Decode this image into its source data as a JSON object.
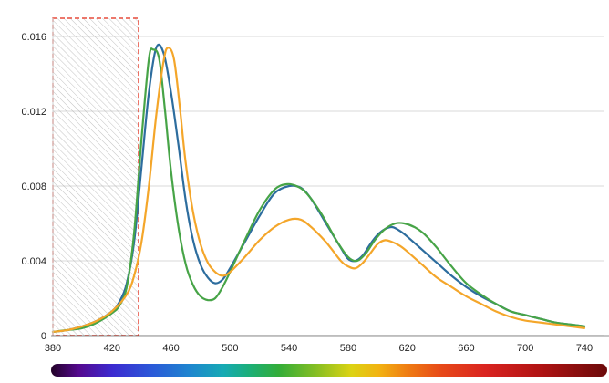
{
  "chart_data": {
    "type": "line",
    "title": "",
    "xlabel": "",
    "ylabel": "",
    "xlim": [
      380,
      740
    ],
    "ylim": [
      0,
      0.016
    ],
    "grid": "horizontal",
    "legend": "none",
    "x_ticks": [
      {
        "value": 380,
        "label": "380"
      },
      {
        "value": 420,
        "label": "420"
      },
      {
        "value": 460,
        "label": "460"
      },
      {
        "value": 500,
        "label": "500"
      },
      {
        "value": 540,
        "label": "540"
      },
      {
        "value": 580,
        "label": "580"
      },
      {
        "value": 620,
        "label": "620"
      },
      {
        "value": 660,
        "label": "660"
      },
      {
        "value": 700,
        "label": "700"
      },
      {
        "value": 740,
        "label": "740"
      }
    ],
    "y_ticks": [
      {
        "value": 0,
        "label": "0"
      },
      {
        "value": 0.004,
        "label": "0.004"
      },
      {
        "value": 0.008,
        "label": "0.008"
      },
      {
        "value": 0.012,
        "label": "0.012"
      },
      {
        "value": 0.016,
        "label": "0.016"
      }
    ],
    "excluded_region": {
      "x_start": 380,
      "x_end": 438,
      "style": "diagonal-hatch",
      "hatch_color": "#9a9a9a",
      "border_color": "#e74c3c",
      "border_style": "dashed"
    },
    "series": [
      {
        "name": "series-blue",
        "color": "#2d6d9e",
        "points": [
          [
            380,
            0.0002
          ],
          [
            390,
            0.0003
          ],
          [
            400,
            0.0005
          ],
          [
            410,
            0.0008
          ],
          [
            420,
            0.0013
          ],
          [
            425,
            0.0018
          ],
          [
            430,
            0.0028
          ],
          [
            435,
            0.005
          ],
          [
            440,
            0.009
          ],
          [
            445,
            0.013
          ],
          [
            450,
            0.0154
          ],
          [
            455,
            0.0151
          ],
          [
            460,
            0.013
          ],
          [
            465,
            0.0102
          ],
          [
            470,
            0.0072
          ],
          [
            475,
            0.0051
          ],
          [
            480,
            0.0038
          ],
          [
            485,
            0.0031
          ],
          [
            490,
            0.0028
          ],
          [
            495,
            0.003
          ],
          [
            500,
            0.0036
          ],
          [
            510,
            0.005
          ],
          [
            520,
            0.0064
          ],
          [
            530,
            0.0076
          ],
          [
            540,
            0.008
          ],
          [
            548,
            0.0079
          ],
          [
            555,
            0.0073
          ],
          [
            565,
            0.006
          ],
          [
            575,
            0.0047
          ],
          [
            580,
            0.0041
          ],
          [
            585,
            0.004
          ],
          [
            590,
            0.0043
          ],
          [
            595,
            0.0049
          ],
          [
            600,
            0.0054
          ],
          [
            605,
            0.0057
          ],
          [
            610,
            0.0058
          ],
          [
            615,
            0.0056
          ],
          [
            620,
            0.0053
          ],
          [
            630,
            0.0046
          ],
          [
            640,
            0.0039
          ],
          [
            650,
            0.0032
          ],
          [
            660,
            0.0026
          ],
          [
            670,
            0.0021
          ],
          [
            680,
            0.0017
          ],
          [
            690,
            0.0013
          ],
          [
            700,
            0.0011
          ],
          [
            710,
            0.0009
          ],
          [
            720,
            0.0007
          ],
          [
            730,
            0.0006
          ],
          [
            740,
            0.0005
          ]
        ]
      },
      {
        "name": "series-green",
        "color": "#47a447",
        "points": [
          [
            380,
            0.0002
          ],
          [
            390,
            0.0003
          ],
          [
            400,
            0.0004
          ],
          [
            410,
            0.0007
          ],
          [
            420,
            0.0012
          ],
          [
            425,
            0.0016
          ],
          [
            430,
            0.0026
          ],
          [
            435,
            0.0055
          ],
          [
            440,
            0.0105
          ],
          [
            445,
            0.0148
          ],
          [
            448,
            0.0153
          ],
          [
            452,
            0.0148
          ],
          [
            456,
            0.012
          ],
          [
            460,
            0.0088
          ],
          [
            465,
            0.0058
          ],
          [
            470,
            0.0038
          ],
          [
            475,
            0.0027
          ],
          [
            480,
            0.0021
          ],
          [
            485,
            0.0019
          ],
          [
            490,
            0.002
          ],
          [
            495,
            0.0026
          ],
          [
            500,
            0.0034
          ],
          [
            510,
            0.0051
          ],
          [
            520,
            0.0067
          ],
          [
            530,
            0.0078
          ],
          [
            538,
            0.0081
          ],
          [
            545,
            0.008
          ],
          [
            552,
            0.0076
          ],
          [
            562,
            0.0065
          ],
          [
            572,
            0.0051
          ],
          [
            580,
            0.0042
          ],
          [
            586,
            0.004
          ],
          [
            592,
            0.0044
          ],
          [
            598,
            0.0051
          ],
          [
            605,
            0.0057
          ],
          [
            612,
            0.006
          ],
          [
            618,
            0.006
          ],
          [
            625,
            0.0058
          ],
          [
            632,
            0.0054
          ],
          [
            640,
            0.0047
          ],
          [
            650,
            0.0037
          ],
          [
            660,
            0.0028
          ],
          [
            670,
            0.0022
          ],
          [
            680,
            0.0017
          ],
          [
            690,
            0.0013
          ],
          [
            700,
            0.0011
          ],
          [
            710,
            0.0009
          ],
          [
            720,
            0.0007
          ],
          [
            730,
            0.0006
          ],
          [
            740,
            0.0005
          ]
        ]
      },
      {
        "name": "series-orange",
        "color": "#f4a62a",
        "points": [
          [
            380,
            0.0002
          ],
          [
            390,
            0.0003
          ],
          [
            400,
            0.0005
          ],
          [
            410,
            0.0008
          ],
          [
            420,
            0.0013
          ],
          [
            430,
            0.0022
          ],
          [
            435,
            0.0032
          ],
          [
            440,
            0.005
          ],
          [
            445,
            0.008
          ],
          [
            450,
            0.0118
          ],
          [
            455,
            0.0147
          ],
          [
            458,
            0.0154
          ],
          [
            462,
            0.0148
          ],
          [
            466,
            0.0122
          ],
          [
            470,
            0.0092
          ],
          [
            475,
            0.0066
          ],
          [
            480,
            0.0049
          ],
          [
            485,
            0.0039
          ],
          [
            490,
            0.0034
          ],
          [
            495,
            0.0032
          ],
          [
            500,
            0.0034
          ],
          [
            510,
            0.0042
          ],
          [
            520,
            0.0051
          ],
          [
            530,
            0.0058
          ],
          [
            540,
            0.0062
          ],
          [
            548,
            0.0062
          ],
          [
            555,
            0.0058
          ],
          [
            565,
            0.005
          ],
          [
            575,
            0.004
          ],
          [
            580,
            0.0037
          ],
          [
            585,
            0.0036
          ],
          [
            590,
            0.0039
          ],
          [
            595,
            0.0044
          ],
          [
            600,
            0.0049
          ],
          [
            605,
            0.0051
          ],
          [
            610,
            0.005
          ],
          [
            615,
            0.0048
          ],
          [
            620,
            0.0045
          ],
          [
            630,
            0.0038
          ],
          [
            640,
            0.0031
          ],
          [
            650,
            0.0026
          ],
          [
            660,
            0.0021
          ],
          [
            670,
            0.0017
          ],
          [
            680,
            0.0013
          ],
          [
            690,
            0.001
          ],
          [
            700,
            0.0008
          ],
          [
            710,
            0.0007
          ],
          [
            720,
            0.0006
          ],
          [
            730,
            0.0005
          ],
          [
            740,
            0.0004
          ]
        ]
      }
    ],
    "spectrum_bar": {
      "stops": [
        {
          "pos": 0.0,
          "color": "#230228"
        },
        {
          "pos": 0.05,
          "color": "#55098f"
        },
        {
          "pos": 0.11,
          "color": "#3c2ad0"
        },
        {
          "pos": 0.18,
          "color": "#2b58d8"
        },
        {
          "pos": 0.25,
          "color": "#1e86cf"
        },
        {
          "pos": 0.31,
          "color": "#16aab4"
        },
        {
          "pos": 0.36,
          "color": "#1caf74"
        },
        {
          "pos": 0.41,
          "color": "#33ad38"
        },
        {
          "pos": 0.48,
          "color": "#8abf22"
        },
        {
          "pos": 0.54,
          "color": "#dcd313"
        },
        {
          "pos": 0.59,
          "color": "#f2b211"
        },
        {
          "pos": 0.64,
          "color": "#ef7d12"
        },
        {
          "pos": 0.7,
          "color": "#e74a18"
        },
        {
          "pos": 0.78,
          "color": "#da2420"
        },
        {
          "pos": 0.88,
          "color": "#b01313"
        },
        {
          "pos": 1.0,
          "color": "#6b0a0a"
        }
      ]
    }
  }
}
